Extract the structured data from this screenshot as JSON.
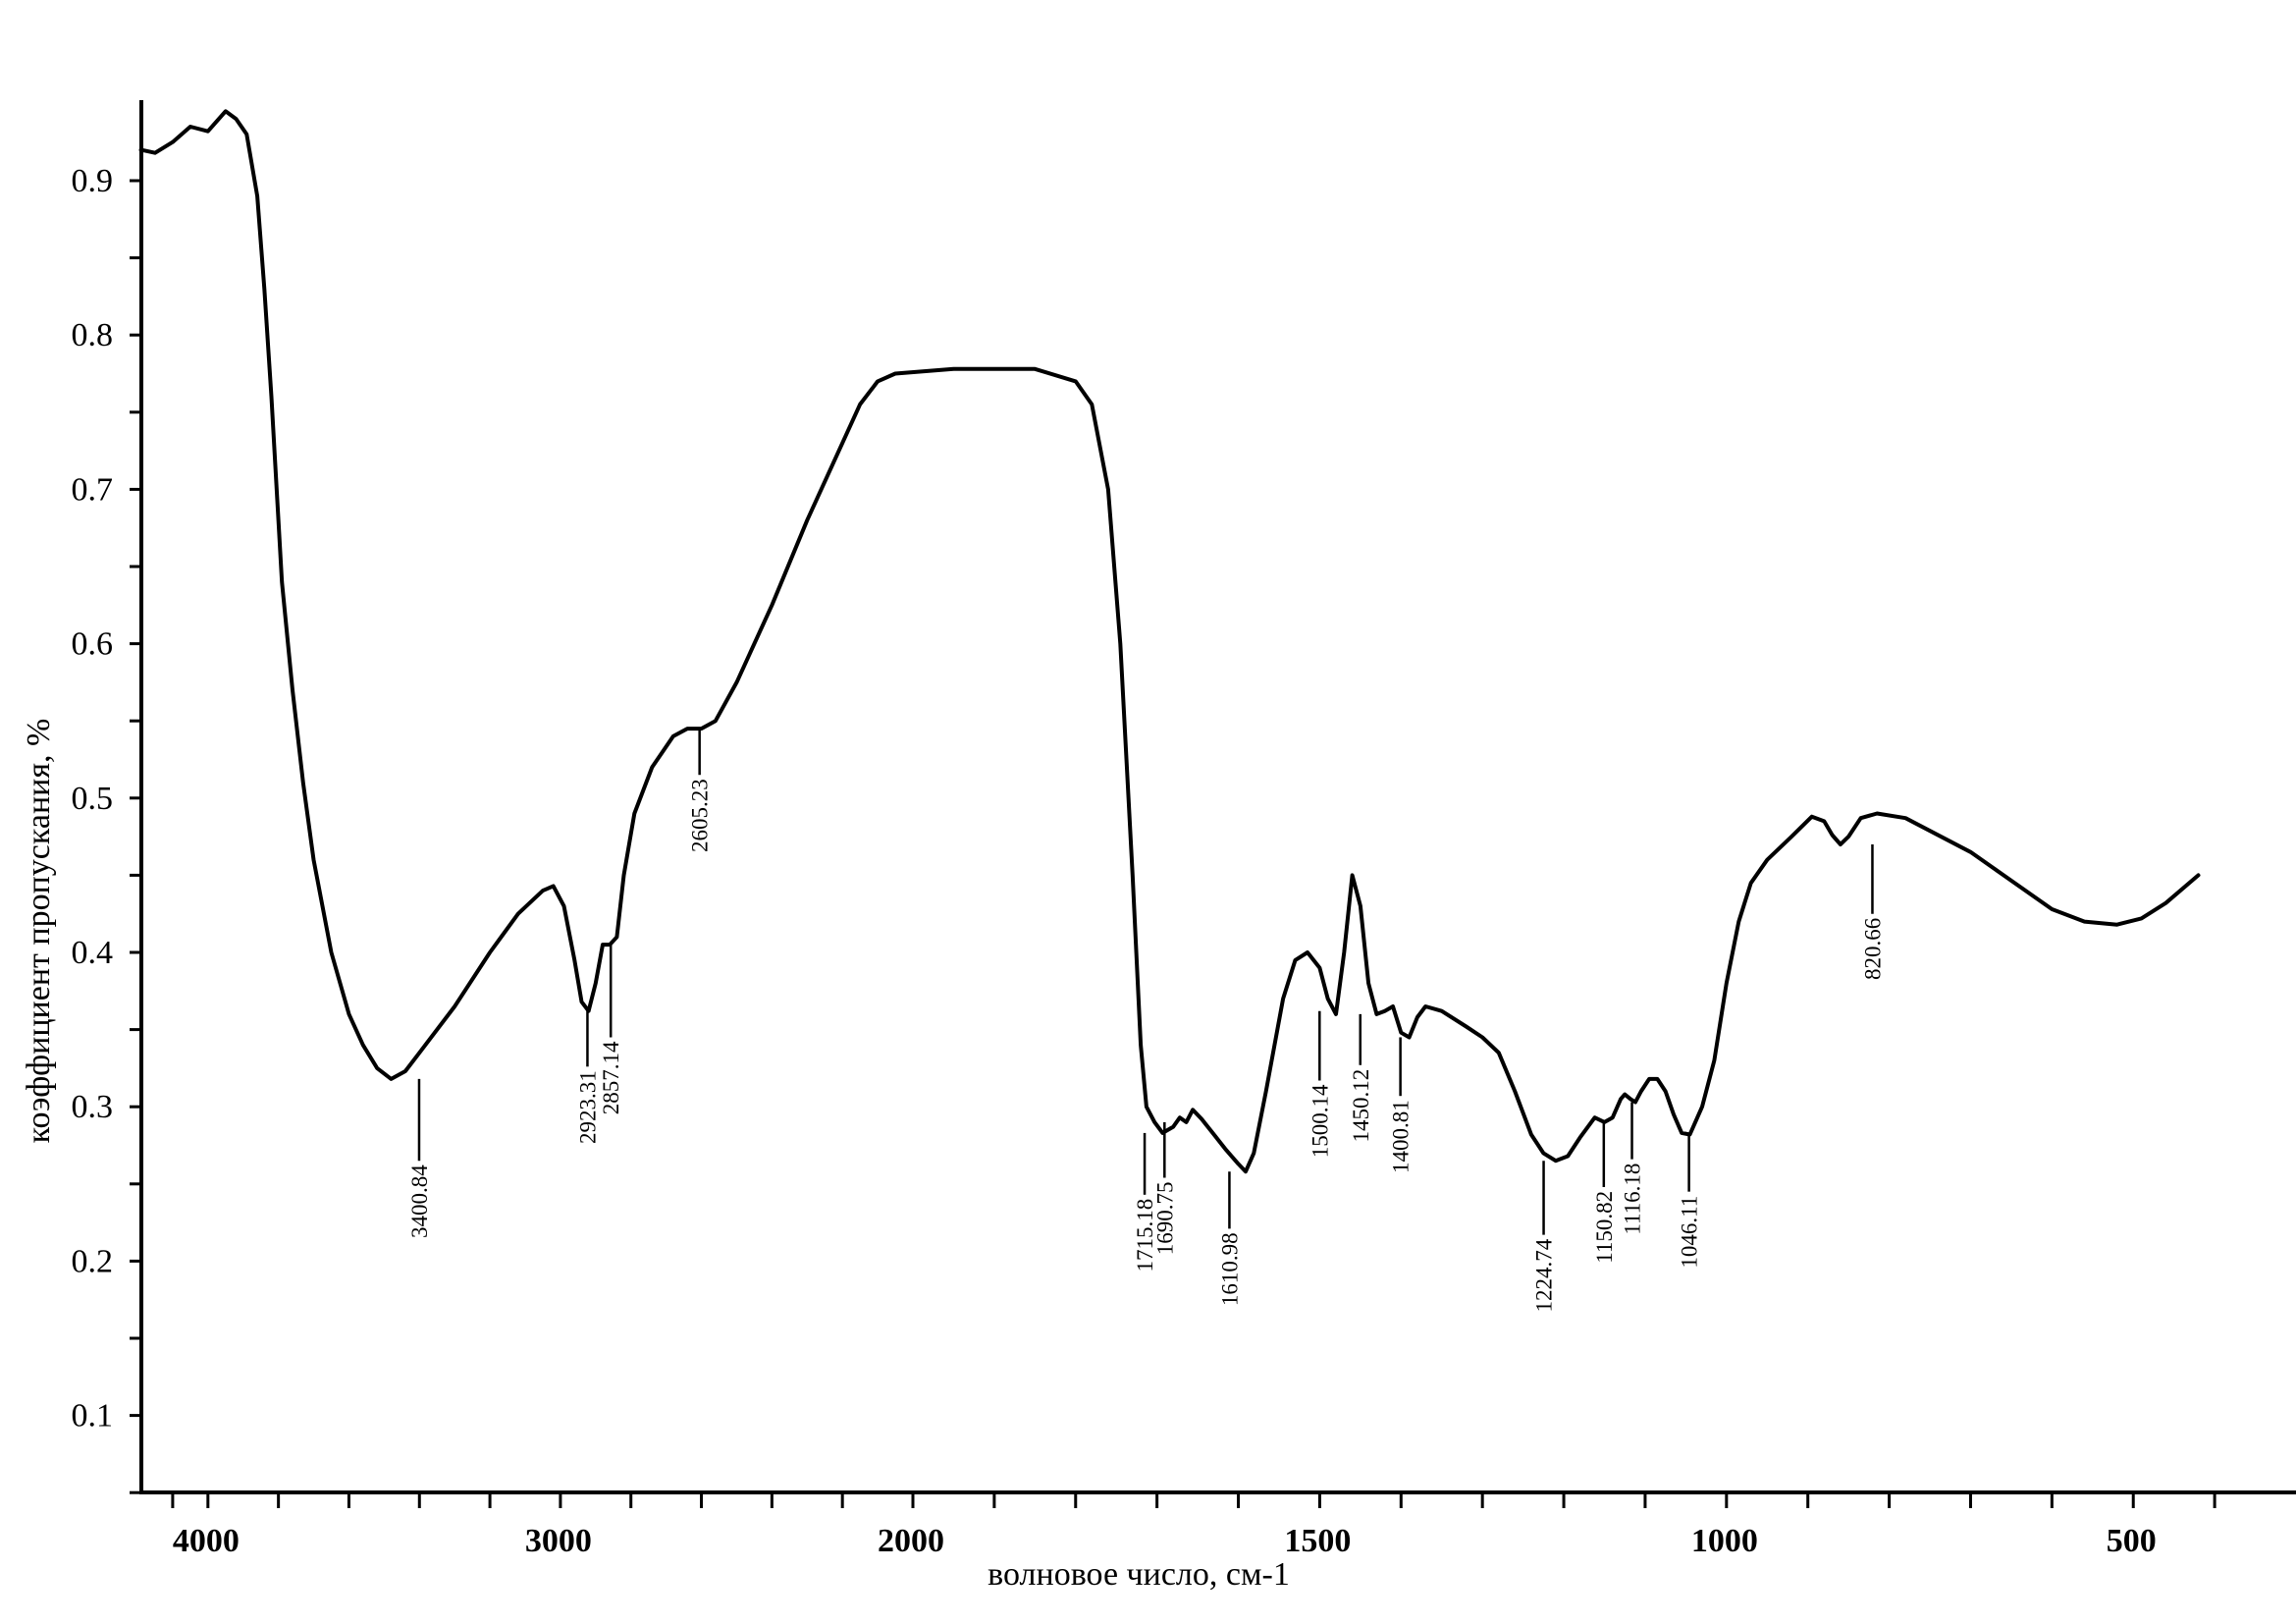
{
  "chart_data": {
    "type": "line",
    "xlabel": "волновое число, см-1",
    "ylabel": "коэффициент пропускания, %",
    "xlim": [
      4200,
      300
    ],
    "ylim": [
      0.05,
      0.95
    ],
    "x_ticks": [
      {
        "value": 4000,
        "label": "4000"
      },
      {
        "value": 3000,
        "label": "3000"
      },
      {
        "value": 2000,
        "label": "2000"
      },
      {
        "value": 1500,
        "label": "1500"
      },
      {
        "value": 1000,
        "label": "1000"
      },
      {
        "value": 500,
        "label": "500"
      }
    ],
    "y_ticks": [
      {
        "value": 0.1,
        "label": "0.1"
      },
      {
        "value": 0.2,
        "label": "0.2"
      },
      {
        "value": 0.3,
        "label": "0.3"
      },
      {
        "value": 0.4,
        "label": "0.4"
      },
      {
        "value": 0.5,
        "label": "0.5"
      },
      {
        "value": 0.6,
        "label": "0.6"
      },
      {
        "value": 0.7,
        "label": "0.7"
      },
      {
        "value": 0.8,
        "label": "0.8"
      },
      {
        "value": 0.9,
        "label": "0.9"
      }
    ],
    "grid": false,
    "series": [
      {
        "color": "#000000",
        "points": [
          [
            4190,
            0.92
          ],
          [
            4150,
            0.918
          ],
          [
            4100,
            0.925
          ],
          [
            4050,
            0.935
          ],
          [
            4000,
            0.932
          ],
          [
            3950,
            0.945
          ],
          [
            3920,
            0.94
          ],
          [
            3890,
            0.93
          ],
          [
            3860,
            0.89
          ],
          [
            3840,
            0.83
          ],
          [
            3820,
            0.76
          ],
          [
            3790,
            0.64
          ],
          [
            3760,
            0.57
          ],
          [
            3730,
            0.51
          ],
          [
            3700,
            0.46
          ],
          [
            3650,
            0.4
          ],
          [
            3600,
            0.36
          ],
          [
            3560,
            0.34
          ],
          [
            3520,
            0.325
          ],
          [
            3480,
            0.318
          ],
          [
            3440,
            0.323
          ],
          [
            3400,
            0.335
          ],
          [
            3300,
            0.365
          ],
          [
            3200,
            0.4
          ],
          [
            3120,
            0.425
          ],
          [
            3050,
            0.44
          ],
          [
            3020,
            0.443
          ],
          [
            2990,
            0.43
          ],
          [
            2960,
            0.395
          ],
          [
            2940,
            0.368
          ],
          [
            2920,
            0.362
          ],
          [
            2900,
            0.38
          ],
          [
            2880,
            0.405
          ],
          [
            2860,
            0.405
          ],
          [
            2840,
            0.41
          ],
          [
            2820,
            0.45
          ],
          [
            2790,
            0.49
          ],
          [
            2740,
            0.52
          ],
          [
            2680,
            0.54
          ],
          [
            2640,
            0.545
          ],
          [
            2600,
            0.545
          ],
          [
            2560,
            0.55
          ],
          [
            2500,
            0.575
          ],
          [
            2400,
            0.625
          ],
          [
            2300,
            0.68
          ],
          [
            2200,
            0.73
          ],
          [
            2150,
            0.755
          ],
          [
            2100,
            0.77
          ],
          [
            2050,
            0.775
          ],
          [
            1950,
            0.778
          ],
          [
            1850,
            0.778
          ],
          [
            1800,
            0.77
          ],
          [
            1780,
            0.755
          ],
          [
            1760,
            0.7
          ],
          [
            1745,
            0.6
          ],
          [
            1730,
            0.45
          ],
          [
            1720,
            0.34
          ],
          [
            1713,
            0.3
          ],
          [
            1703,
            0.29
          ],
          [
            1693,
            0.283
          ],
          [
            1680,
            0.287
          ],
          [
            1672,
            0.293
          ],
          [
            1664,
            0.29
          ],
          [
            1656,
            0.298
          ],
          [
            1645,
            0.292
          ],
          [
            1630,
            0.282
          ],
          [
            1615,
            0.272
          ],
          [
            1600,
            0.263
          ],
          [
            1591,
            0.258
          ],
          [
            1581,
            0.27
          ],
          [
            1566,
            0.31
          ],
          [
            1545,
            0.37
          ],
          [
            1530,
            0.395
          ],
          [
            1515,
            0.4
          ],
          [
            1500,
            0.39
          ],
          [
            1490,
            0.37
          ],
          [
            1480,
            0.36
          ],
          [
            1470,
            0.4
          ],
          [
            1460,
            0.45
          ],
          [
            1450,
            0.43
          ],
          [
            1440,
            0.38
          ],
          [
            1430,
            0.36
          ],
          [
            1420,
            0.362
          ],
          [
            1410,
            0.365
          ],
          [
            1400,
            0.348
          ],
          [
            1390,
            0.345
          ],
          [
            1380,
            0.358
          ],
          [
            1370,
            0.365
          ],
          [
            1350,
            0.362
          ],
          [
            1320,
            0.352
          ],
          [
            1300,
            0.345
          ],
          [
            1280,
            0.335
          ],
          [
            1260,
            0.31
          ],
          [
            1240,
            0.282
          ],
          [
            1225,
            0.27
          ],
          [
            1210,
            0.265
          ],
          [
            1195,
            0.268
          ],
          [
            1180,
            0.28
          ],
          [
            1162,
            0.293
          ],
          [
            1150,
            0.29
          ],
          [
            1140,
            0.293
          ],
          [
            1130,
            0.305
          ],
          [
            1125,
            0.308
          ],
          [
            1118,
            0.305
          ],
          [
            1112,
            0.303
          ],
          [
            1105,
            0.31
          ],
          [
            1095,
            0.318
          ],
          [
            1085,
            0.318
          ],
          [
            1075,
            0.31
          ],
          [
            1065,
            0.295
          ],
          [
            1055,
            0.283
          ],
          [
            1045,
            0.282
          ],
          [
            1030,
            0.3
          ],
          [
            1015,
            0.33
          ],
          [
            1000,
            0.38
          ],
          [
            985,
            0.42
          ],
          [
            970,
            0.445
          ],
          [
            950,
            0.46
          ],
          [
            920,
            0.475
          ],
          [
            895,
            0.488
          ],
          [
            880,
            0.485
          ],
          [
            870,
            0.476
          ],
          [
            860,
            0.47
          ],
          [
            850,
            0.475
          ],
          [
            835,
            0.487
          ],
          [
            815,
            0.49
          ],
          [
            780,
            0.487
          ],
          [
            700,
            0.465
          ],
          [
            600,
            0.428
          ],
          [
            560,
            0.42
          ],
          [
            520,
            0.418
          ],
          [
            490,
            0.422
          ],
          [
            460,
            0.432
          ],
          [
            420,
            0.45
          ]
        ]
      }
    ],
    "annotations": [
      {
        "x": 3400.84,
        "label": "3400.84",
        "y_curve": 0.318,
        "y_end": 0.265
      },
      {
        "x": 2923.31,
        "label": "2923.31",
        "y_curve": 0.362,
        "y_end": 0.326
      },
      {
        "x": 2857.14,
        "label": "2857.14",
        "y_curve": 0.405,
        "y_end": 0.345
      },
      {
        "x": 2605.23,
        "label": "2605.23",
        "y_curve": 0.545,
        "y_end": 0.515
      },
      {
        "x": 1715.18,
        "label": "1715.18",
        "y_curve": 0.283,
        "y_end": 0.243
      },
      {
        "x": 1690.75,
        "label": "1690.75",
        "y_curve": 0.29,
        "y_end": 0.254
      },
      {
        "x": 1610.98,
        "label": "1610.98",
        "y_curve": 0.258,
        "y_end": 0.221
      },
      {
        "x": 1500.14,
        "label": "1500.14",
        "y_curve": 0.362,
        "y_end": 0.317
      },
      {
        "x": 1450.12,
        "label": "1450.12",
        "y_curve": 0.36,
        "y_end": 0.327
      },
      {
        "x": 1400.81,
        "label": "1400.81",
        "y_curve": 0.345,
        "y_end": 0.307
      },
      {
        "x": 1224.74,
        "label": "1224.74",
        "y_curve": 0.265,
        "y_end": 0.217
      },
      {
        "x": 1150.82,
        "label": "1150.82",
        "y_curve": 0.29,
        "y_end": 0.248
      },
      {
        "x": 1116.18,
        "label": "1116.18",
        "y_curve": 0.303,
        "y_end": 0.266
      },
      {
        "x": 1046.11,
        "label": "1046.11",
        "y_curve": 0.282,
        "y_end": 0.245
      },
      {
        "x": 820.66,
        "label": "820.66",
        "y_curve": 0.47,
        "y_end": 0.425
      }
    ]
  }
}
